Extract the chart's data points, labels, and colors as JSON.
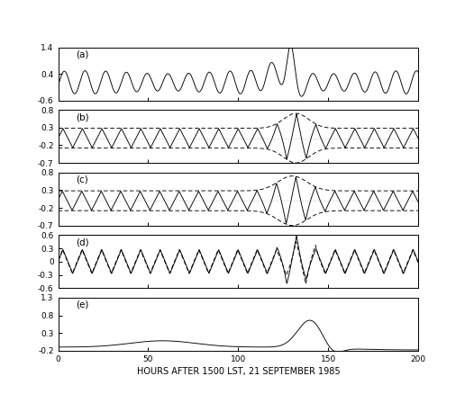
{
  "title": "",
  "xlabel": "HOURS AFTER 1500 LST, 21 SEPTEMBER 1985",
  "xlim": [
    0,
    200
  ],
  "panels": [
    {
      "label": "(a)",
      "ylim": [
        -0.6,
        1.4
      ],
      "yticks": [
        -0.6,
        0.4,
        1.4
      ],
      "ytick_labels": [
        "-0.6",
        "0.4",
        "1.4"
      ]
    },
    {
      "label": "(b)",
      "ylim": [
        -0.7,
        0.8
      ],
      "yticks": [
        -0.7,
        -0.2,
        0.3,
        0.8
      ],
      "ytick_labels": [
        "-0.7",
        "-0.2",
        "0.3",
        "0.8"
      ]
    },
    {
      "label": "(c)",
      "ylim": [
        -0.7,
        0.8
      ],
      "yticks": [
        -0.7,
        -0.2,
        0.3,
        0.8
      ],
      "ytick_labels": [
        "-0.7",
        "-0.2",
        "0.3",
        "0.8"
      ]
    },
    {
      "label": "(d)",
      "ylim": [
        -0.6,
        0.6
      ],
      "yticks": [
        -0.6,
        -0.3,
        0.0,
        0.3,
        0.6
      ],
      "ytick_labels": [
        "-0.6",
        "-0.3",
        "0",
        "0.3",
        "0.6"
      ]
    },
    {
      "label": "(e)",
      "ylim": [
        -0.2,
        1.3
      ],
      "yticks": [
        -0.2,
        0.3,
        0.8,
        1.3
      ],
      "ytick_labels": [
        "-0.2",
        "0.3",
        "0.8",
        "1.3"
      ]
    }
  ],
  "background_color": "#ffffff"
}
